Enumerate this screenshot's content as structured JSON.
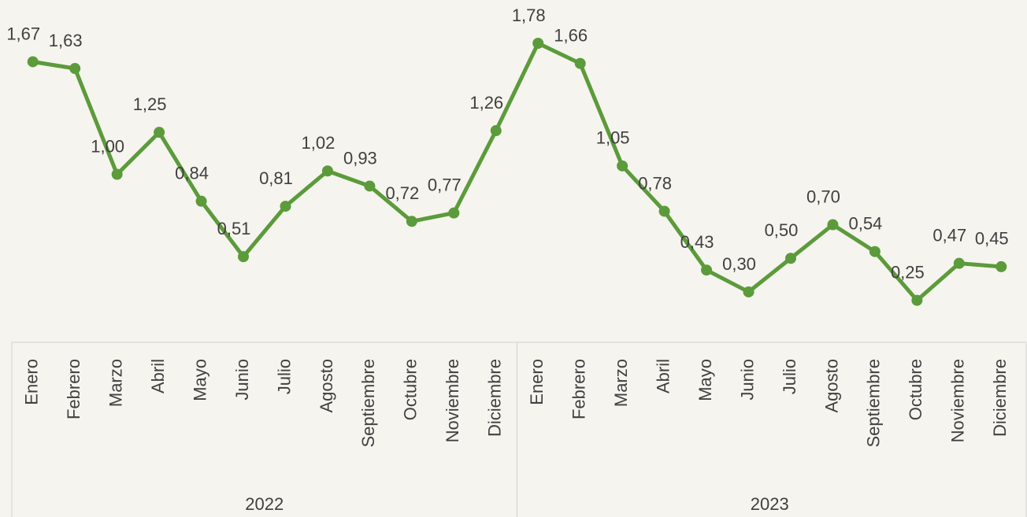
{
  "chart_data": {
    "type": "line",
    "categories": [
      "Enero",
      "Febrero",
      "Marzo",
      "Abril",
      "Mayo",
      "Junio",
      "Julio",
      "Agosto",
      "Septiembre",
      "Octubre",
      "Noviembre",
      "Diciembre",
      "Enero",
      "Febrero",
      "Marzo",
      "Abril",
      "Mayo",
      "Junio",
      "Julio",
      "Agosto",
      "Septiembre",
      "Octubre",
      "Noviembre",
      "Diciembre"
    ],
    "category_groups": [
      "2022",
      "2023"
    ],
    "color": "#5b9b3b",
    "values": [
      1.67,
      1.63,
      1.0,
      1.25,
      0.84,
      0.51,
      0.81,
      1.02,
      0.93,
      0.72,
      0.77,
      1.26,
      1.78,
      1.66,
      1.05,
      0.78,
      0.43,
      0.3,
      0.5,
      0.7,
      0.54,
      0.25,
      0.47,
      0.45
    ],
    "value_labels": [
      "1,67",
      "1,63",
      "1,00",
      "1,25",
      "0,84",
      "0,51",
      "0,81",
      "1,02",
      "0,93",
      "0,72",
      "0,77",
      "1,26",
      "1,78",
      "1,66",
      "1,05",
      "0,78",
      "0,43",
      "0,30",
      "0,50",
      "0,70",
      "0,54",
      "0,25",
      "0,47",
      "0,45"
    ]
  }
}
